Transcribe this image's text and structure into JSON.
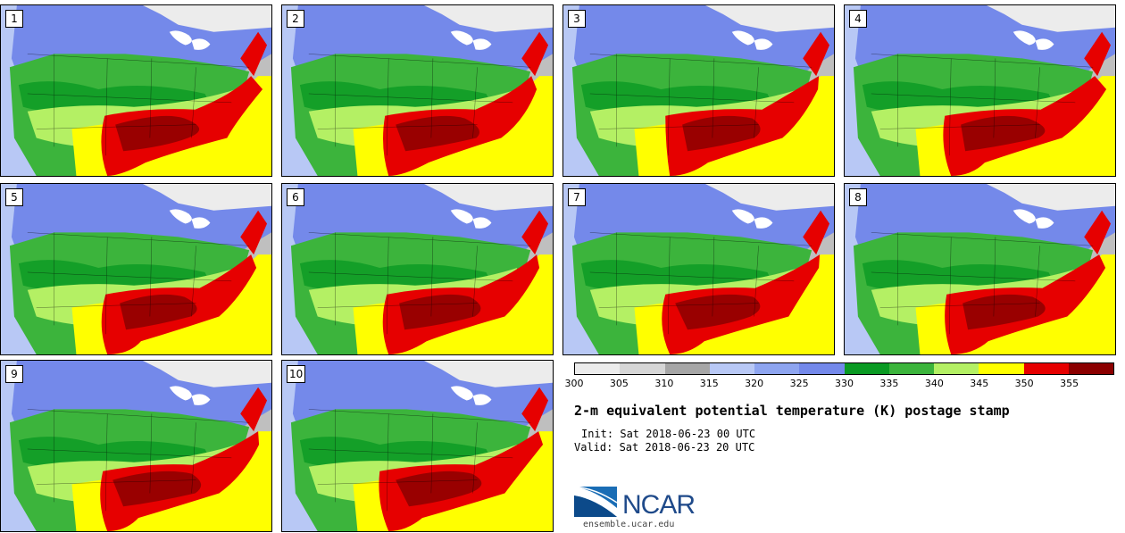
{
  "panels": [
    {
      "label": "1"
    },
    {
      "label": "2"
    },
    {
      "label": "3"
    },
    {
      "label": "4"
    },
    {
      "label": "5"
    },
    {
      "label": "6"
    },
    {
      "label": "7"
    },
    {
      "label": "8"
    },
    {
      "label": "9"
    },
    {
      "label": "10"
    }
  ],
  "colorbar": {
    "colors": [
      "#ececec",
      "#d6d6d6",
      "#a6a6a6",
      "#b8c8f5",
      "#8ea5f0",
      "#7489ea",
      "#0a9a23",
      "#3cb43c",
      "#b4f064",
      "#ffff00",
      "#e60000",
      "#8b0000"
    ],
    "ticks": [
      "300",
      "305",
      "310",
      "315",
      "320",
      "325",
      "330",
      "335",
      "340",
      "345",
      "350",
      "355"
    ]
  },
  "title": "2-m equivalent potential temperature (K) postage stamp",
  "init": "Init: Sat 2018-06-23 00 UTC",
  "valid": "Valid: Sat 2018-06-23 20 UTC",
  "logo": "NCAR",
  "site": "ensemble.ucar.edu",
  "map_colors": {
    "ocean": "#bfbfbf",
    "canada": "#7489ea",
    "far_north": "#ececec",
    "plains": "#3cb43c",
    "dark_green": "#0a9a23",
    "light_green": "#b4f064",
    "yellow": "#ffff00",
    "red": "#e60000",
    "dark_red": "#8b0000",
    "pacific_ocean": "#b8c8f5"
  }
}
